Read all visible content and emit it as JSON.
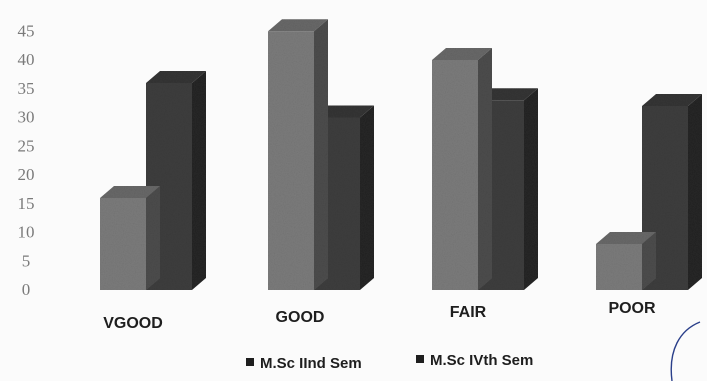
{
  "chart_data": {
    "type": "bar",
    "title": "",
    "xlabel": "",
    "ylabel": "",
    "ylim": [
      0,
      45
    ],
    "yticks": [
      0,
      5,
      10,
      15,
      20,
      25,
      30,
      35,
      40,
      45
    ],
    "categories": [
      "VGOOD",
      "GOOD",
      "FAIR",
      "POOR"
    ],
    "series": [
      {
        "name": "M.Sc IInd Sem",
        "values": [
          16,
          45,
          40,
          8
        ],
        "color": "#7c7c7c"
      },
      {
        "name": "M.Sc IVth Sem",
        "values": [
          36,
          30,
          33,
          32
        ],
        "color": "#3e3e3e"
      }
    ],
    "legend_position": "bottom",
    "grid": false,
    "style": "3d-column"
  }
}
